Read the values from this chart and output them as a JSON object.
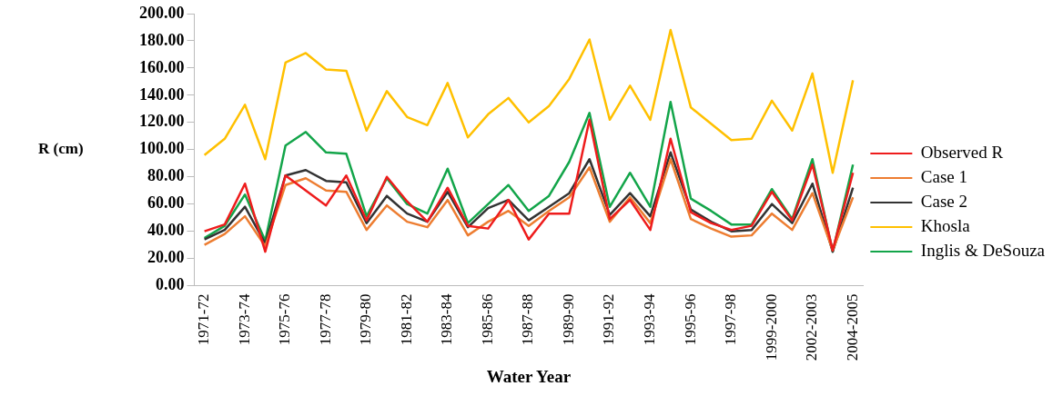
{
  "chart_data": {
    "type": "line",
    "xlabel": "Water Year",
    "ylabel": "R (cm)",
    "categories": [
      "1971-72",
      null,
      "1973-74",
      null,
      "1975-76",
      null,
      "1977-78",
      null,
      "1979-80",
      null,
      "1981-82",
      null,
      "1983-84",
      null,
      "1985-86",
      null,
      "1987-88",
      null,
      "1989-90",
      null,
      "1991-92",
      null,
      "1993-94",
      null,
      "1995-96",
      null,
      "1997-98",
      null,
      "1999-2000",
      null,
      "2002-2003",
      null,
      "2004-2005"
    ],
    "series": [
      {
        "name": "Observed R",
        "color": "#ee1c1c",
        "values": [
          40,
          45,
          75,
          25,
          81,
          70,
          59,
          81,
          48,
          80,
          62,
          47,
          72,
          44,
          42,
          63,
          34,
          53,
          53,
          122,
          49,
          63,
          41,
          108,
          54,
          46,
          41,
          44,
          69,
          48,
          89,
          26,
          83
        ]
      },
      {
        "name": "Case 1",
        "color": "#ed7d31",
        "values": [
          30,
          38,
          51,
          29,
          74,
          79,
          70,
          69,
          41,
          59,
          47,
          43,
          63,
          37,
          47,
          55,
          44,
          55,
          65,
          87,
          47,
          65,
          46,
          93,
          49,
          42,
          36,
          37,
          53,
          41,
          68,
          26,
          65
        ]
      },
      {
        "name": "Case 2",
        "color": "#333333",
        "values": [
          34,
          41,
          58,
          31,
          81,
          85,
          77,
          76,
          46,
          66,
          53,
          47,
          69,
          43,
          57,
          63,
          48,
          58,
          68,
          93,
          52,
          68,
          51,
          98,
          56,
          47,
          40,
          41,
          60,
          46,
          75,
          25,
          72
        ]
      },
      {
        "name": "Khosla",
        "color": "#ffc000",
        "values": [
          96,
          108,
          133,
          93,
          164,
          171,
          159,
          158,
          114,
          143,
          124,
          118,
          149,
          109,
          126,
          138,
          120,
          132,
          152,
          181,
          122,
          147,
          122,
          188,
          131,
          119,
          107,
          108,
          136,
          114,
          156,
          83,
          151
        ]
      },
      {
        "name": "Inglis & DeSouza",
        "color": "#13a54a",
        "values": [
          35,
          44,
          67,
          33,
          103,
          113,
          98,
          97,
          51,
          79,
          60,
          53,
          86,
          46,
          60,
          74,
          55,
          66,
          91,
          127,
          58,
          83,
          58,
          135,
          64,
          55,
          45,
          45,
          71,
          49,
          93,
          25,
          89
        ]
      }
    ],
    "ylim": [
      0,
      200
    ],
    "yticks": [
      {
        "value": 0,
        "label": "0.00"
      },
      {
        "value": 20,
        "label": "20.00"
      },
      {
        "value": 40,
        "label": "40.00"
      },
      {
        "value": 60,
        "label": "60.00"
      },
      {
        "value": 80,
        "label": "80.00"
      },
      {
        "value": 100,
        "label": "100.00"
      },
      {
        "value": 120,
        "label": "120.00"
      },
      {
        "value": 140,
        "label": "140.00"
      },
      {
        "value": 160,
        "label": "160.00"
      },
      {
        "value": 180,
        "label": "180.00"
      },
      {
        "value": 200,
        "label": "200.00"
      }
    ],
    "grid": false,
    "legend": "right",
    "marker": "none",
    "line_style": "solid"
  }
}
